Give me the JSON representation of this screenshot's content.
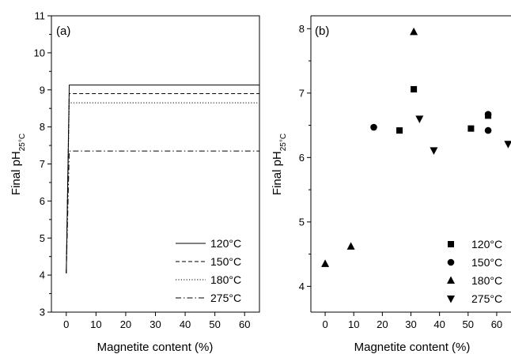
{
  "chart_data": [
    {
      "type": "line",
      "panel_label": "(a)",
      "xlabel": "Magnetite content (%)",
      "ylabel_main": "Final pH",
      "ylabel_sub": "25°C",
      "xlim": [
        -5,
        65
      ],
      "ylim": [
        3,
        11
      ],
      "xticks": [
        "0",
        "10",
        "20",
        "30",
        "40",
        "50",
        "60"
      ],
      "yticks": [
        "3",
        "4",
        "5",
        "6",
        "7",
        "8",
        "9",
        "10",
        "11"
      ],
      "legend_position": "bottom-right",
      "series": [
        {
          "name": "120°C",
          "style": "solid",
          "x": [
            0,
            1,
            65
          ],
          "y": [
            4.05,
            9.13,
            9.13
          ]
        },
        {
          "name": "150°C",
          "style": "dashed",
          "x": [
            0,
            1,
            65
          ],
          "y": [
            4.05,
            8.9,
            8.9
          ]
        },
        {
          "name": "180°C",
          "style": "dotted",
          "x": [
            0,
            1,
            65
          ],
          "y": [
            4.05,
            8.65,
            8.65
          ]
        },
        {
          "name": "275°C",
          "style": "dashdot",
          "x": [
            0,
            1,
            65
          ],
          "y": [
            4.05,
            7.35,
            7.35
          ]
        }
      ]
    },
    {
      "type": "scatter",
      "panel_label": "(b)",
      "xlabel": "Magnetite content (%)",
      "ylabel_main": "Final pH",
      "ylabel_sub": "25°C",
      "xlim": [
        -5,
        65
      ],
      "ylim": [
        3.6,
        8.2
      ],
      "xticks": [
        "0",
        "10",
        "20",
        "30",
        "40",
        "50",
        "60"
      ],
      "yticks": [
        "4",
        "5",
        "6",
        "7",
        "8"
      ],
      "legend_position": "bottom-right",
      "series": [
        {
          "name": "120°C",
          "marker": "square",
          "x": [
            26,
            31,
            51,
            57
          ],
          "y": [
            6.42,
            7.06,
            6.45,
            6.65
          ]
        },
        {
          "name": "150°C",
          "marker": "circle",
          "x": [
            17,
            57,
            57
          ],
          "y": [
            6.47,
            6.67,
            6.42
          ]
        },
        {
          "name": "180°C",
          "marker": "triangle-up",
          "x": [
            0,
            9,
            31
          ],
          "y": [
            4.35,
            4.62,
            7.95
          ]
        },
        {
          "name": "275°C",
          "marker": "triangle-down",
          "x": [
            33,
            38,
            64
          ],
          "y": [
            6.6,
            6.11,
            6.21
          ]
        }
      ]
    }
  ]
}
